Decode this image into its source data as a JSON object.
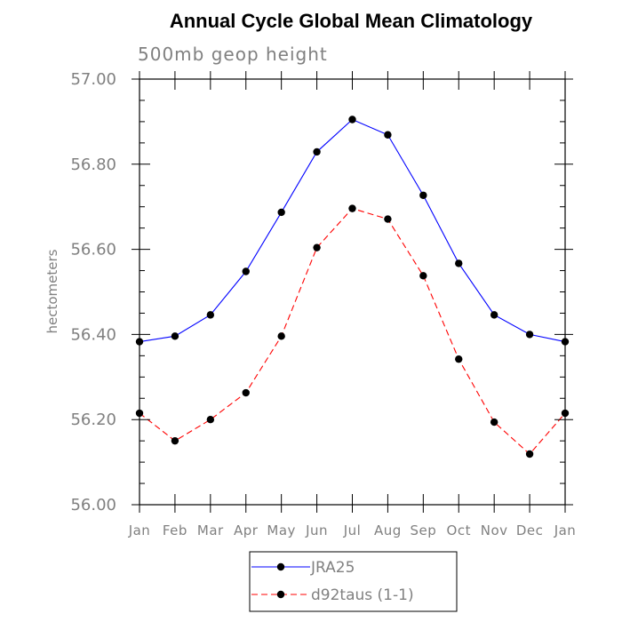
{
  "chart_data": {
    "type": "line",
    "title": "Annual Cycle Global Mean Climatology",
    "subtitle": "500mb geop height",
    "xlabel": "",
    "ylabel": "hectometers",
    "categories": [
      "Jan",
      "Feb",
      "Mar",
      "Apr",
      "May",
      "Jun",
      "Jul",
      "Aug",
      "Sep",
      "Oct",
      "Nov",
      "Dec",
      "Jan"
    ],
    "ylim": [
      56.0,
      57.0
    ],
    "yticks": [
      "56.00",
      "56.20",
      "56.40",
      "56.60",
      "56.80",
      "57.00"
    ],
    "grid": false,
    "legend_position": "bottom-center",
    "series": [
      {
        "name": "JRA25",
        "color": "#0000ff",
        "line_style": "solid",
        "marker": "filled-circle",
        "values": [
          56.383,
          56.396,
          56.446,
          56.548,
          56.687,
          56.829,
          56.905,
          56.869,
          56.727,
          56.567,
          56.446,
          56.4,
          56.383
        ]
      },
      {
        "name": "d92taus (1-1)",
        "color": "#ff0000",
        "line_style": "dashed",
        "marker": "filled-circle",
        "values": [
          56.215,
          56.15,
          56.2,
          56.263,
          56.396,
          56.604,
          56.696,
          56.671,
          56.538,
          56.342,
          56.194,
          56.119,
          56.215
        ]
      }
    ]
  }
}
